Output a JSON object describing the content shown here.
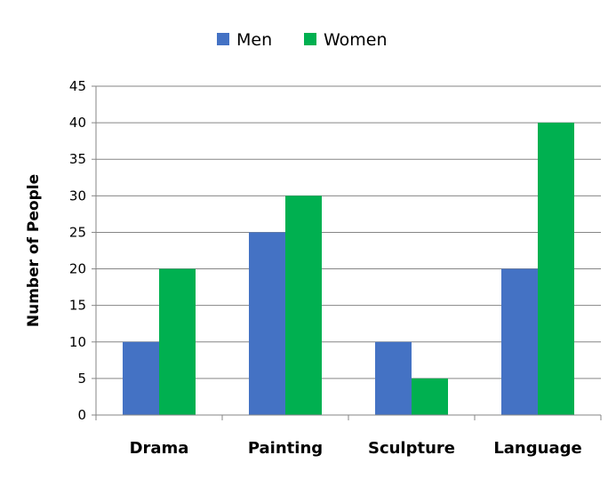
{
  "chart_data": {
    "type": "bar",
    "categories": [
      "Drama",
      "Painting",
      "Sculpture",
      "Language"
    ],
    "series": [
      {
        "name": "Men",
        "values": [
          10,
          25,
          10,
          20
        ],
        "color": "#4472C4"
      },
      {
        "name": "Women",
        "values": [
          20,
          30,
          5,
          40
        ],
        "color": "#00B050"
      }
    ],
    "yticks": [
      "0",
      "5",
      "10",
      "15",
      "20",
      "25",
      "30",
      "35",
      "40",
      "45"
    ],
    "ylim": [
      0,
      45
    ],
    "xlabel": "",
    "ylabel": "Number of People",
    "grid": true,
    "legend": "top-center"
  }
}
